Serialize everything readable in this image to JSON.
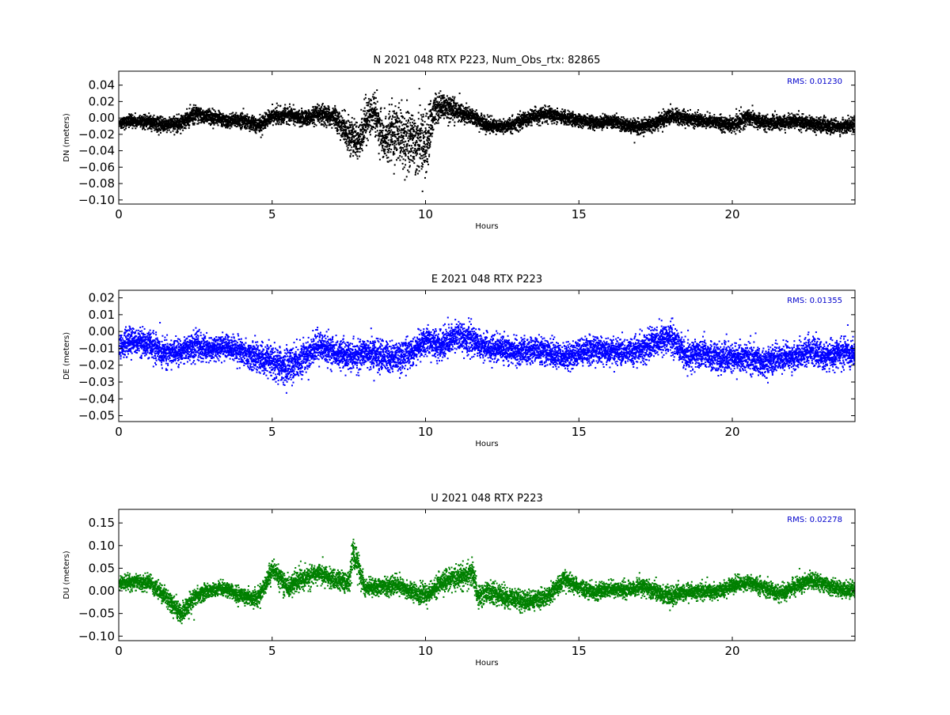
{
  "chart_data": [
    {
      "type": "scatter",
      "title": "N 2021 048 RTX  P223, Num_Obs_rtx: 82865",
      "xlabel": "Hours",
      "ylabel": "DN (meters)",
      "xlim": [
        0,
        24
      ],
      "ylim": [
        -0.105,
        0.057
      ],
      "xticks": [
        0,
        5,
        10,
        15,
        20
      ],
      "xtick_labels": [
        "0",
        "5",
        "10",
        "15",
        "20"
      ],
      "yticks": [
        -0.1,
        -0.08,
        -0.06,
        -0.04,
        -0.02,
        0.0,
        0.02,
        0.04
      ],
      "ytick_labels": [
        "−0.10",
        "−0.08",
        "−0.06",
        "−0.04",
        "−0.02",
        "0.00",
        "0.02",
        "0.04"
      ],
      "color": "#000000",
      "annotation": "RMS:  0.01230",
      "grid": false,
      "series": [
        {
          "x": [
            0,
            0.5,
            1,
            1.5,
            2,
            2.5,
            3,
            3.5,
            4,
            4.5,
            5,
            5.5,
            6,
            6.5,
            7,
            7.5,
            7.8,
            8,
            8.3,
            8.6,
            9,
            9.5,
            10,
            10.3,
            10.6,
            11,
            11.5,
            12,
            12.5,
            13,
            13.5,
            14,
            14.5,
            15,
            15.5,
            16,
            16.5,
            17,
            17.5,
            18,
            18.5,
            19,
            19.5,
            20,
            20.5,
            21,
            21.5,
            22,
            22.5,
            23,
            23.5,
            24
          ],
          "y": [
            -0.005,
            -0.003,
            -0.004,
            -0.008,
            -0.005,
            0.005,
            0.002,
            -0.003,
            -0.002,
            -0.008,
            0.003,
            0.005,
            0.0,
            0.005,
            0.002,
            -0.02,
            -0.03,
            -0.005,
            0.01,
            -0.025,
            -0.02,
            -0.025,
            -0.03,
            0.012,
            0.015,
            0.01,
            0.002,
            -0.008,
            -0.01,
            -0.005,
            0.003,
            0.005,
            0.001,
            -0.002,
            -0.005,
            -0.003,
            -0.008,
            -0.01,
            -0.005,
            0.003,
            0.0,
            -0.002,
            -0.005,
            -0.008,
            0.002,
            -0.005,
            -0.005,
            -0.003,
            -0.006,
            -0.008,
            -0.01,
            -0.006
          ],
          "spread": [
            0.01,
            0.01,
            0.01,
            0.011,
            0.012,
            0.014,
            0.012,
            0.011,
            0.011,
            0.012,
            0.012,
            0.012,
            0.012,
            0.014,
            0.015,
            0.025,
            0.03,
            0.035,
            0.03,
            0.035,
            0.045,
            0.05,
            0.045,
            0.025,
            0.02,
            0.016,
            0.013,
            0.012,
            0.011,
            0.011,
            0.011,
            0.011,
            0.01,
            0.01,
            0.01,
            0.01,
            0.011,
            0.011,
            0.012,
            0.013,
            0.012,
            0.011,
            0.011,
            0.012,
            0.013,
            0.012,
            0.011,
            0.011,
            0.011,
            0.011,
            0.011,
            0.011
          ]
        }
      ]
    },
    {
      "type": "scatter",
      "title": "E 2021 048 RTX  P223",
      "xlabel": "Hours",
      "ylabel": "DE (meters)",
      "xlim": [
        0,
        24
      ],
      "ylim": [
        -0.0535,
        0.0245
      ],
      "xticks": [
        0,
        5,
        10,
        15,
        20
      ],
      "xtick_labels": [
        "0",
        "5",
        "10",
        "15",
        "20"
      ],
      "yticks": [
        -0.05,
        -0.04,
        -0.03,
        -0.02,
        -0.01,
        0.0,
        0.01,
        0.02
      ],
      "ytick_labels": [
        "−0.05",
        "−0.04",
        "−0.03",
        "−0.02",
        "−0.01",
        "0.00",
        "0.01",
        "0.02"
      ],
      "color": "#0000ff",
      "annotation": "RMS:  0.01355",
      "grid": false,
      "series": [
        {
          "x": [
            0,
            0.5,
            1,
            1.5,
            2,
            2.5,
            3,
            3.5,
            4,
            4.5,
            5,
            5.5,
            6,
            6.5,
            7,
            7.5,
            8,
            8.5,
            9,
            9.5,
            10,
            10.5,
            11,
            11.5,
            12,
            12.5,
            13,
            13.5,
            14,
            14.5,
            15,
            15.5,
            16,
            16.5,
            17,
            17.5,
            18,
            18.5,
            19,
            19.5,
            20,
            20.5,
            21,
            21.5,
            22,
            22.5,
            23,
            23.5,
            24
          ],
          "y": [
            -0.008,
            -0.005,
            -0.008,
            -0.012,
            -0.012,
            -0.008,
            -0.01,
            -0.008,
            -0.012,
            -0.015,
            -0.018,
            -0.02,
            -0.015,
            -0.008,
            -0.012,
            -0.015,
            -0.012,
            -0.015,
            -0.015,
            -0.012,
            -0.005,
            -0.008,
            -0.002,
            -0.005,
            -0.01,
            -0.01,
            -0.012,
            -0.01,
            -0.012,
            -0.015,
            -0.012,
            -0.01,
            -0.012,
            -0.012,
            -0.01,
            -0.005,
            -0.003,
            -0.015,
            -0.012,
            -0.015,
            -0.015,
            -0.015,
            -0.018,
            -0.015,
            -0.015,
            -0.01,
            -0.015,
            -0.012,
            -0.012
          ],
          "spread": [
            0.01,
            0.01,
            0.01,
            0.01,
            0.009,
            0.011,
            0.009,
            0.009,
            0.01,
            0.011,
            0.012,
            0.013,
            0.012,
            0.012,
            0.01,
            0.011,
            0.011,
            0.012,
            0.011,
            0.011,
            0.011,
            0.011,
            0.012,
            0.011,
            0.01,
            0.01,
            0.01,
            0.01,
            0.01,
            0.01,
            0.01,
            0.01,
            0.01,
            0.01,
            0.011,
            0.012,
            0.012,
            0.011,
            0.01,
            0.011,
            0.011,
            0.011,
            0.011,
            0.01,
            0.01,
            0.01,
            0.01,
            0.01,
            0.01
          ]
        }
      ]
    },
    {
      "type": "scatter",
      "title": "U 2021 048 RTX  P223",
      "xlabel": "Hours",
      "ylabel": "DU (meters)",
      "xlim": [
        0,
        24
      ],
      "ylim": [
        -0.11,
        0.18
      ],
      "xticks": [
        0,
        5,
        10,
        15,
        20
      ],
      "xtick_labels": [
        "0",
        "5",
        "10",
        "15",
        "20"
      ],
      "yticks": [
        -0.1,
        -0.05,
        0.0,
        0.05,
        0.1,
        0.15
      ],
      "ytick_labels": [
        "−0.10",
        "−0.05",
        "0.00",
        "0.05",
        "0.10",
        "0.15"
      ],
      "color": "#008000",
      "annotation": "RMS:  0.02278",
      "grid": false,
      "series": [
        {
          "x": [
            0,
            0.5,
            1,
            1.5,
            2,
            2.5,
            3,
            3.5,
            4,
            4.5,
            5,
            5.2,
            5.5,
            6,
            6.5,
            7,
            7.5,
            7.6,
            8,
            8.5,
            9,
            9.5,
            10,
            10.5,
            11,
            11.5,
            11.7,
            12,
            12.5,
            13,
            13.5,
            14,
            14.5,
            15,
            15.5,
            16,
            16.5,
            17,
            17.5,
            18,
            18.5,
            19,
            19.5,
            20,
            20.5,
            21,
            21.5,
            22,
            22.5,
            23,
            23.5,
            24
          ],
          "y": [
            0.02,
            0.02,
            0.02,
            -0.01,
            -0.05,
            -0.01,
            0.005,
            0.005,
            -0.01,
            -0.015,
            0.05,
            0.03,
            0.01,
            0.03,
            0.04,
            0.025,
            0.02,
            0.09,
            0.01,
            0.01,
            0.015,
            0.0,
            -0.01,
            0.02,
            0.03,
            0.04,
            -0.01,
            0.0,
            -0.01,
            -0.02,
            -0.02,
            -0.01,
            0.025,
            0.01,
            0.0,
            0.005,
            0.005,
            0.01,
            0.0,
            -0.01,
            0.0,
            0.0,
            0.0,
            0.015,
            0.02,
            0.01,
            -0.005,
            0.01,
            0.025,
            0.015,
            0.005,
            0.005
          ],
          "spread": [
            0.022,
            0.022,
            0.022,
            0.025,
            0.03,
            0.025,
            0.02,
            0.02,
            0.022,
            0.025,
            0.03,
            0.03,
            0.03,
            0.03,
            0.03,
            0.028,
            0.03,
            0.045,
            0.025,
            0.025,
            0.025,
            0.025,
            0.028,
            0.03,
            0.03,
            0.035,
            0.035,
            0.03,
            0.03,
            0.028,
            0.028,
            0.025,
            0.025,
            0.022,
            0.022,
            0.022,
            0.022,
            0.022,
            0.025,
            0.025,
            0.022,
            0.022,
            0.022,
            0.022,
            0.022,
            0.022,
            0.022,
            0.022,
            0.022,
            0.022,
            0.022,
            0.022
          ]
        }
      ]
    }
  ]
}
